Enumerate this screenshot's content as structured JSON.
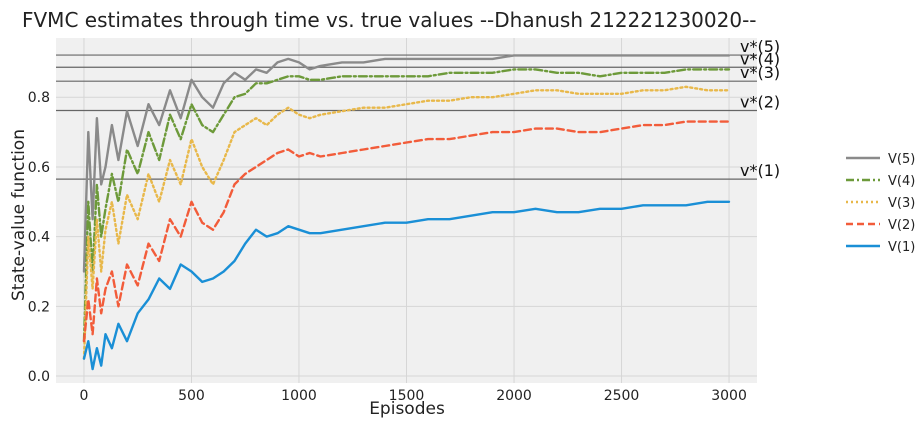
{
  "chart_data": {
    "type": "line",
    "title": "FVMC estimates through time vs. true values --Dhanush 212221230020--",
    "xlabel": "Episodes",
    "ylabel": "State-value function",
    "xlim": [
      -130,
      3130
    ],
    "ylim": [
      -0.02,
      0.97
    ],
    "x_ticks": [
      0,
      500,
      1000,
      1500,
      2000,
      2500,
      3000
    ],
    "y_ticks": [
      0.0,
      0.2,
      0.4,
      0.6,
      0.8
    ],
    "grid": true,
    "legend_position": "right",
    "reference_lines": [
      {
        "label": "v*(5)",
        "value": 0.921
      },
      {
        "label": "v*(4)",
        "value": 0.886
      },
      {
        "label": "v*(3)",
        "value": 0.846
      },
      {
        "label": "v*(2)",
        "value": 0.762
      },
      {
        "label": "v*(1)",
        "value": 0.565
      }
    ],
    "reference_color": "#666666",
    "series": [
      {
        "name": "V(5)",
        "color": "#8a8a8a",
        "dash": "solid",
        "x": [
          0,
          20,
          40,
          60,
          80,
          100,
          130,
          160,
          200,
          250,
          300,
          350,
          400,
          450,
          500,
          550,
          600,
          650,
          700,
          750,
          800,
          850,
          900,
          950,
          1000,
          1050,
          1100,
          1200,
          1300,
          1400,
          1500,
          1600,
          1700,
          1800,
          1900,
          2000,
          2100,
          2200,
          2300,
          2400,
          2500,
          2600,
          2700,
          2800,
          2900,
          3000
        ],
        "y": [
          0.3,
          0.7,
          0.45,
          0.74,
          0.55,
          0.6,
          0.72,
          0.62,
          0.76,
          0.66,
          0.78,
          0.72,
          0.82,
          0.74,
          0.85,
          0.8,
          0.77,
          0.84,
          0.87,
          0.85,
          0.88,
          0.87,
          0.9,
          0.91,
          0.9,
          0.88,
          0.89,
          0.9,
          0.9,
          0.91,
          0.91,
          0.91,
          0.91,
          0.91,
          0.91,
          0.92,
          0.92,
          0.92,
          0.92,
          0.92,
          0.92,
          0.92,
          0.92,
          0.92,
          0.92,
          0.92
        ]
      },
      {
        "name": "V(4)",
        "color": "#6d9a3a",
        "dash": "dashdot",
        "x": [
          0,
          20,
          40,
          60,
          80,
          100,
          130,
          160,
          200,
          250,
          300,
          350,
          400,
          450,
          500,
          550,
          600,
          650,
          700,
          750,
          800,
          850,
          900,
          950,
          1000,
          1050,
          1100,
          1200,
          1300,
          1400,
          1500,
          1600,
          1700,
          1800,
          1900,
          2000,
          2100,
          2200,
          2300,
          2400,
          2500,
          2600,
          2700,
          2800,
          2900,
          3000
        ],
        "y": [
          0.1,
          0.5,
          0.3,
          0.55,
          0.4,
          0.48,
          0.58,
          0.5,
          0.65,
          0.58,
          0.7,
          0.62,
          0.75,
          0.68,
          0.78,
          0.72,
          0.7,
          0.75,
          0.8,
          0.81,
          0.84,
          0.84,
          0.85,
          0.86,
          0.86,
          0.85,
          0.85,
          0.86,
          0.86,
          0.86,
          0.86,
          0.86,
          0.87,
          0.87,
          0.87,
          0.88,
          0.88,
          0.87,
          0.87,
          0.86,
          0.87,
          0.87,
          0.87,
          0.88,
          0.88,
          0.88
        ]
      },
      {
        "name": "V(3)",
        "color": "#e8b84a",
        "dash": "dotted",
        "x": [
          0,
          20,
          40,
          60,
          80,
          100,
          130,
          160,
          200,
          250,
          300,
          350,
          400,
          450,
          500,
          550,
          600,
          650,
          700,
          750,
          800,
          850,
          900,
          950,
          1000,
          1050,
          1100,
          1200,
          1300,
          1400,
          1500,
          1600,
          1700,
          1800,
          1900,
          2000,
          2100,
          2200,
          2300,
          2400,
          2500,
          2600,
          2700,
          2800,
          2900,
          3000
        ],
        "y": [
          0.05,
          0.4,
          0.25,
          0.45,
          0.3,
          0.42,
          0.5,
          0.38,
          0.52,
          0.45,
          0.58,
          0.5,
          0.62,
          0.55,
          0.68,
          0.6,
          0.55,
          0.62,
          0.7,
          0.72,
          0.74,
          0.72,
          0.75,
          0.77,
          0.75,
          0.74,
          0.75,
          0.76,
          0.77,
          0.77,
          0.78,
          0.79,
          0.79,
          0.8,
          0.8,
          0.81,
          0.82,
          0.82,
          0.81,
          0.81,
          0.81,
          0.82,
          0.82,
          0.83,
          0.82,
          0.82
        ]
      },
      {
        "name": "V(2)",
        "color": "#f25c3a",
        "dash": "dashed",
        "x": [
          0,
          20,
          40,
          60,
          80,
          100,
          130,
          160,
          200,
          250,
          300,
          350,
          400,
          450,
          500,
          550,
          600,
          650,
          700,
          750,
          800,
          850,
          900,
          950,
          1000,
          1050,
          1100,
          1200,
          1300,
          1400,
          1500,
          1600,
          1700,
          1800,
          1900,
          2000,
          2100,
          2200,
          2300,
          2400,
          2500,
          2600,
          2700,
          2800,
          2900,
          3000
        ],
        "y": [
          0.1,
          0.22,
          0.12,
          0.28,
          0.18,
          0.25,
          0.3,
          0.2,
          0.32,
          0.26,
          0.38,
          0.33,
          0.45,
          0.4,
          0.5,
          0.44,
          0.42,
          0.47,
          0.55,
          0.58,
          0.6,
          0.62,
          0.64,
          0.65,
          0.63,
          0.64,
          0.63,
          0.64,
          0.65,
          0.66,
          0.67,
          0.68,
          0.68,
          0.69,
          0.7,
          0.7,
          0.71,
          0.71,
          0.7,
          0.7,
          0.71,
          0.72,
          0.72,
          0.73,
          0.73,
          0.73
        ]
      },
      {
        "name": "V(1)",
        "color": "#1a8fd6",
        "dash": "solid",
        "x": [
          0,
          20,
          40,
          60,
          80,
          100,
          130,
          160,
          200,
          250,
          300,
          350,
          400,
          450,
          500,
          550,
          600,
          650,
          700,
          750,
          800,
          850,
          900,
          950,
          1000,
          1050,
          1100,
          1200,
          1300,
          1400,
          1500,
          1600,
          1700,
          1800,
          1900,
          2000,
          2100,
          2200,
          2300,
          2400,
          2500,
          2600,
          2700,
          2800,
          2900,
          3000
        ],
        "y": [
          0.05,
          0.1,
          0.02,
          0.08,
          0.03,
          0.12,
          0.08,
          0.15,
          0.1,
          0.18,
          0.22,
          0.28,
          0.25,
          0.32,
          0.3,
          0.27,
          0.28,
          0.3,
          0.33,
          0.38,
          0.42,
          0.4,
          0.41,
          0.43,
          0.42,
          0.41,
          0.41,
          0.42,
          0.43,
          0.44,
          0.44,
          0.45,
          0.45,
          0.46,
          0.47,
          0.47,
          0.48,
          0.47,
          0.47,
          0.48,
          0.48,
          0.49,
          0.49,
          0.49,
          0.5,
          0.5
        ]
      }
    ],
    "legend_order": [
      "V(5)",
      "V(4)",
      "V(3)",
      "V(2)",
      "V(1)"
    ]
  }
}
